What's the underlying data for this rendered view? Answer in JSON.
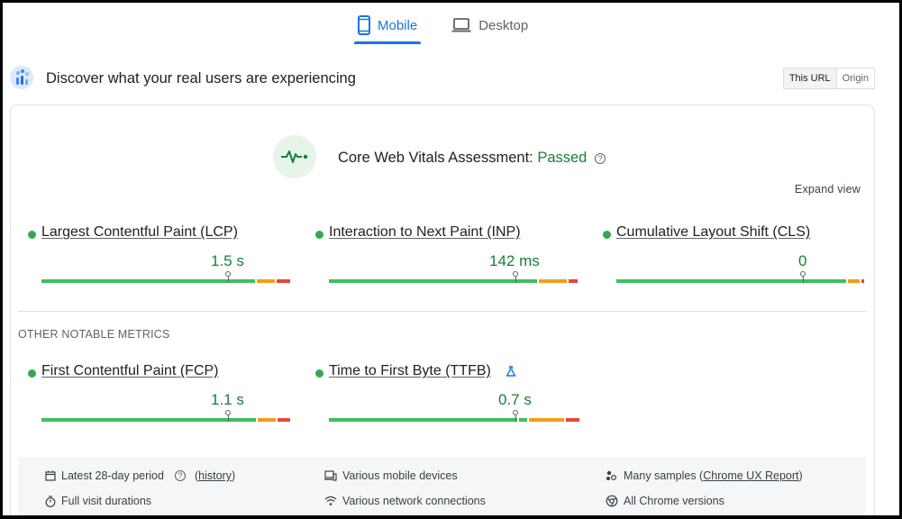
{
  "tabs": [
    {
      "label": "Mobile",
      "icon": "smartphone-icon",
      "active": true
    },
    {
      "label": "Desktop",
      "icon": "laptop-icon",
      "active": false
    }
  ],
  "header": {
    "title": "Discover what your real users are experiencing",
    "toggle": {
      "this_url": "This URL",
      "origin": "Origin",
      "selected": "This URL"
    }
  },
  "assessment": {
    "prefix": "Core Web Vitals Assessment:",
    "status": "Passed",
    "help": "?",
    "expand_label": "Expand view"
  },
  "core_metrics": [
    {
      "name": "Largest Contentful Paint (LCP)",
      "value": "1.5 s",
      "status": "good"
    },
    {
      "name": "Interaction to Next Paint (INP)",
      "value": "142 ms",
      "status": "good"
    },
    {
      "name": "Cumulative Layout Shift (CLS)",
      "value": "0",
      "status": "good"
    }
  ],
  "other_label": "OTHER NOTABLE METRICS",
  "other_metrics": [
    {
      "name": "First Contentful Paint (FCP)",
      "value": "1.1 s",
      "status": "good"
    },
    {
      "name": "Time to First Byte (TTFB)",
      "value": "0.7 s",
      "status": "good",
      "experimental_icon": "flask-icon"
    }
  ],
  "footer": {
    "period": "Latest 28-day period",
    "history_open": "(",
    "history": "history",
    "history_close": ")",
    "devices": "Various mobile devices",
    "samples_prefix": "Many samples (",
    "samples_link": "Chrome UX Report",
    "samples_suffix": ")",
    "durations": "Full visit durations",
    "connections": "Various network connections",
    "versions": "All Chrome versions"
  },
  "colors": {
    "accent": "#1a73e8",
    "good": "#188038",
    "good_bar": "#3fbf5f",
    "needs_improvement": "#f29d1a",
    "poor": "#e8453c"
  }
}
